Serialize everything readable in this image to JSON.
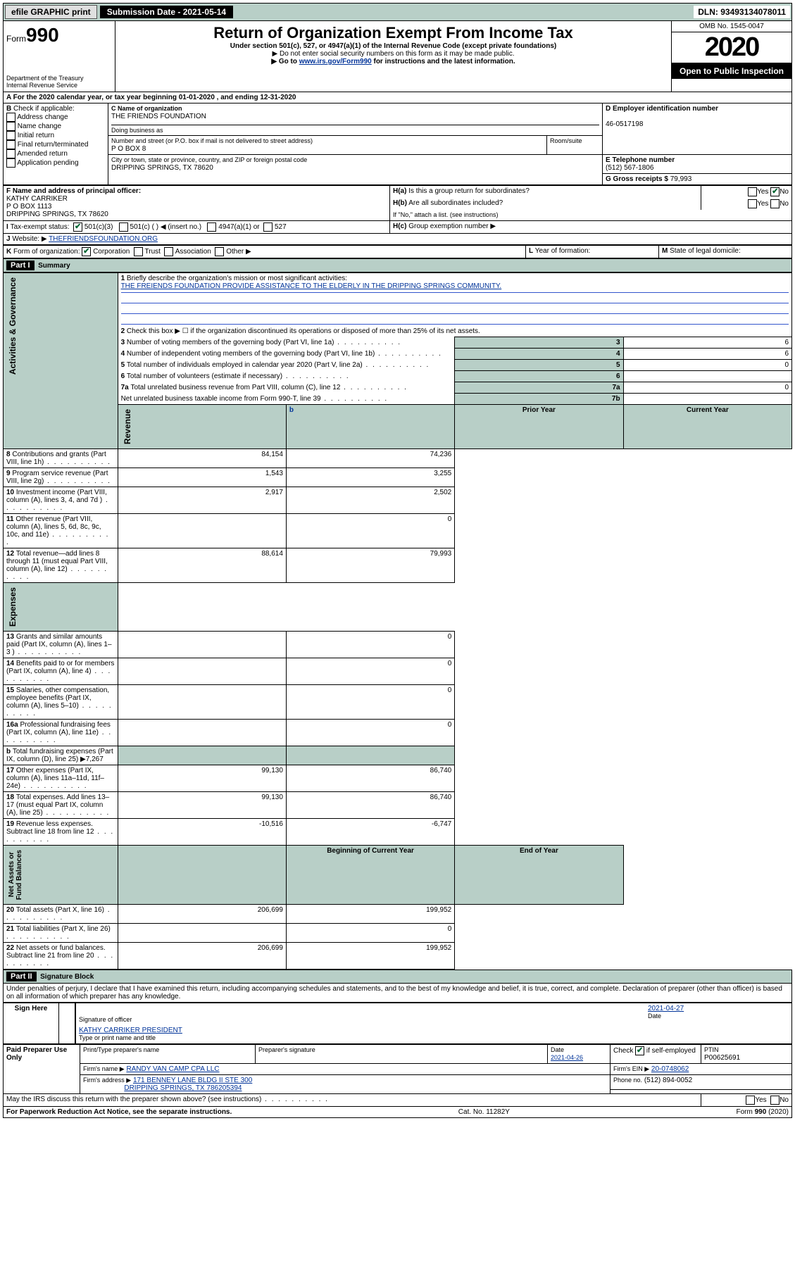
{
  "topbar": {
    "efile": "efile GRAPHIC print",
    "subdate_label": "Submission Date - 2021-05-14",
    "dln": "DLN: 93493134078011"
  },
  "header": {
    "form_word": "Form",
    "form_no": "990",
    "dept": "Department of the Treasury\nInternal Revenue Service",
    "title": "Return of Organization Exempt From Income Tax",
    "subtitle": "Under section 501(c), 527, or 4947(a)(1) of the Internal Revenue Code (except private foundations)",
    "note1": "▶ Do not enter social security numbers on this form as it may be made public.",
    "note2_pre": "▶ Go to ",
    "note2_link": "www.irs.gov/Form990",
    "note2_post": " for instructions and the latest information.",
    "omb": "OMB No. 1545-0047",
    "year": "2020",
    "open": "Open to Public Inspection"
  },
  "A": {
    "text": "For the 2020 calendar year, or tax year beginning 01-01-2020   , and ending 12-31-2020"
  },
  "B": {
    "label": "Check if applicable:",
    "opts": [
      "Address change",
      "Name change",
      "Initial return",
      "Final return/terminated",
      "Amended return",
      "Application pending"
    ]
  },
  "C": {
    "name_lbl": "C Name of organization",
    "name": "THE FRIENDS FOUNDATION",
    "dba_lbl": "Doing business as",
    "addr_lbl": "Number and street (or P.O. box if mail is not delivered to street address)",
    "room_lbl": "Room/suite",
    "addr": "P O BOX 8",
    "city_lbl": "City or town, state or province, country, and ZIP or foreign postal code",
    "city": "DRIPPING SPRINGS, TX  78620"
  },
  "D": {
    "lbl": "D Employer identification number",
    "val": "46-0517198"
  },
  "E": {
    "lbl": "E Telephone number",
    "val": "(512) 567-1806"
  },
  "G": {
    "lbl": "G Gross receipts $",
    "val": "79,993"
  },
  "F": {
    "lbl": "F  Name and address of principal officer:",
    "line1": "KATHY CARRIKER",
    "line2": "P O BOX 1113",
    "line3": "DRIPPING SPRINGS, TX  78620"
  },
  "H": {
    "a": "Is this a group return for subordinates?",
    "b": "Are all subordinates included?",
    "b_note": "If \"No,\" attach a list. (see instructions)",
    "c": "Group exemption number ▶",
    "yes": "Yes",
    "no": "No"
  },
  "I": {
    "lbl": "Tax-exempt status:",
    "o1": "501(c)(3)",
    "o2": "501(c) (   ) ◀ (insert no.)",
    "o3": "4947(a)(1) or",
    "o4": "527"
  },
  "J": {
    "lbl": "Website: ▶",
    "val": "THEFRIENDSFOUNDATION.ORG"
  },
  "K": {
    "lbl": "Form of organization:",
    "o1": "Corporation",
    "o2": "Trust",
    "o3": "Association",
    "o4": "Other ▶"
  },
  "L": {
    "lbl": "Year of formation:"
  },
  "M": {
    "lbl": "State of legal domicile:"
  },
  "part1": {
    "title": "Part I",
    "sub": "Summary",
    "q1": "Briefly describe the organization's mission or most significant activities:",
    "q1a": "THE FREIENDS FOUNDATION PROVIDE ASSISTANCE TO THE ELDERLY IN THE DRIPPING SPRINGS COMMUNITY.",
    "q2": "Check this box ▶ ☐  if the organization discontinued its operations or disposed of more than 25% of its net assets.",
    "rows_gov": [
      {
        "n": "3",
        "t": "Number of voting members of the governing body (Part VI, line 1a)",
        "box": "3",
        "v": "6"
      },
      {
        "n": "4",
        "t": "Number of independent voting members of the governing body (Part VI, line 1b)",
        "box": "4",
        "v": "6"
      },
      {
        "n": "5",
        "t": "Total number of individuals employed in calendar year 2020 (Part V, line 2a)",
        "box": "5",
        "v": "0"
      },
      {
        "n": "6",
        "t": "Total number of volunteers (estimate if necessary)",
        "box": "6",
        "v": ""
      },
      {
        "n": "7a",
        "t": "Total unrelated business revenue from Part VIII, column (C), line 12",
        "box": "7a",
        "v": "0"
      },
      {
        "n": "",
        "t": "Net unrelated business taxable income from Form 990-T, line 39",
        "box": "7b",
        "v": ""
      }
    ],
    "prior": "Prior Year",
    "current": "Current Year",
    "rows_rev": [
      {
        "n": "8",
        "t": "Contributions and grants (Part VIII, line 1h)",
        "p": "84,154",
        "c": "74,236"
      },
      {
        "n": "9",
        "t": "Program service revenue (Part VIII, line 2g)",
        "p": "1,543",
        "c": "3,255"
      },
      {
        "n": "10",
        "t": "Investment income (Part VIII, column (A), lines 3, 4, and 7d )",
        "p": "2,917",
        "c": "2,502"
      },
      {
        "n": "11",
        "t": "Other revenue (Part VIII, column (A), lines 5, 6d, 8c, 9c, 10c, and 11e)",
        "p": "",
        "c": "0"
      },
      {
        "n": "12",
        "t": "Total revenue—add lines 8 through 11 (must equal Part VIII, column (A), line 12)",
        "p": "88,614",
        "c": "79,993"
      }
    ],
    "rows_exp": [
      {
        "n": "13",
        "t": "Grants and similar amounts paid (Part IX, column (A), lines 1–3 )",
        "p": "",
        "c": "0"
      },
      {
        "n": "14",
        "t": "Benefits paid to or for members (Part IX, column (A), line 4)",
        "p": "",
        "c": "0"
      },
      {
        "n": "15",
        "t": "Salaries, other compensation, employee benefits (Part IX, column (A), lines 5–10)",
        "p": "",
        "c": "0"
      },
      {
        "n": "16a",
        "t": "Professional fundraising fees (Part IX, column (A), line 11e)",
        "p": "",
        "c": "0"
      },
      {
        "n": "b",
        "t": "Total fundraising expenses (Part IX, column (D), line 25) ▶7,267",
        "p": "shade",
        "c": "shade"
      },
      {
        "n": "17",
        "t": "Other expenses (Part IX, column (A), lines 11a–11d, 11f–24e)",
        "p": "99,130",
        "c": "86,740"
      },
      {
        "n": "18",
        "t": "Total expenses. Add lines 13–17 (must equal Part IX, column (A), line 25)",
        "p": "99,130",
        "c": "86,740"
      },
      {
        "n": "19",
        "t": "Revenue less expenses. Subtract line 18 from line 12",
        "p": "-10,516",
        "c": "-6,747"
      }
    ],
    "begin": "Beginning of Current Year",
    "end": "End of Year",
    "rows_net": [
      {
        "n": "20",
        "t": "Total assets (Part X, line 16)",
        "p": "206,699",
        "c": "199,952"
      },
      {
        "n": "21",
        "t": "Total liabilities (Part X, line 26)",
        "p": "",
        "c": "0"
      },
      {
        "n": "22",
        "t": "Net assets or fund balances. Subtract line 21 from line 20",
        "p": "206,699",
        "c": "199,952"
      }
    ],
    "side_gov": "Activities & Governance",
    "side_rev": "Revenue",
    "side_exp": "Expenses",
    "side_net": "Net Assets or\nFund Balances"
  },
  "part2": {
    "title": "Part II",
    "sub": "Signature Block",
    "decl": "Under penalties of perjury, I declare that I have examined this return, including accompanying schedules and statements, and to the best of my knowledge and belief, it is true, correct, and complete. Declaration of preparer (other than officer) is based on all information of which preparer has any knowledge.",
    "sign_here": "Sign Here",
    "sig_off": "Signature of officer",
    "date": "Date",
    "date_v": "2021-04-27",
    "name_title": "KATHY CARRIKER  PRESIDENT",
    "name_lbl": "Type or print name and title",
    "paid": "Paid Preparer Use Only",
    "p_name_lbl": "Print/Type preparer's name",
    "p_sig_lbl": "Preparer's signature",
    "p_date_lbl": "Date",
    "p_date": "2021-04-26",
    "p_check": "Check ☑ if self-employed",
    "ptin_lbl": "PTIN",
    "ptin": "P00625691",
    "firm_lbl": "Firm's name    ▶",
    "firm": "RANDY VAN CAMP CPA LLC",
    "ein_lbl": "Firm's EIN ▶",
    "ein": "20-0748062",
    "addr_lbl": "Firm's address ▶",
    "addr1": "171 BENNEY LANE BLDG II STE 300",
    "addr2": "DRIPPING SPRINGS, TX  786205394",
    "phone_lbl": "Phone no.",
    "phone": "(512) 894-0052",
    "discuss": "May the IRS discuss this return with the preparer shown above? (see instructions)"
  },
  "footer": {
    "left": "For Paperwork Reduction Act Notice, see the separate instructions.",
    "mid": "Cat. No. 11282Y",
    "right": "Form 990 (2020)"
  },
  "colors": {
    "band": "#b8cfc7",
    "link": "#003399"
  }
}
